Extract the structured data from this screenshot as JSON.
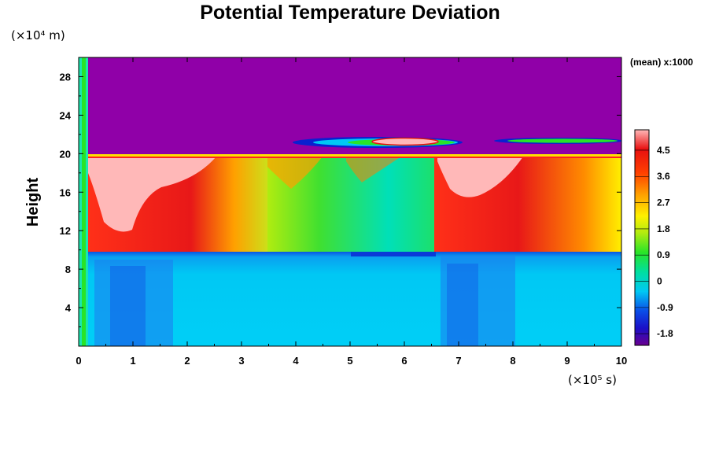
{
  "chart_data": {
    "type": "heatmap",
    "title": "Potential Temperature Deviation",
    "ylabel": "Height",
    "y_unit": "(×10⁴ m)",
    "x_unit": "(×10⁵ s)",
    "colorbar_note": "(mean) x:1000",
    "xlim": [
      0,
      10
    ],
    "ylim": [
      0,
      30
    ],
    "x_ticks": [
      "0",
      "1",
      "2",
      "3",
      "4",
      "5",
      "6",
      "7",
      "8",
      "9",
      "10"
    ],
    "y_ticks": [
      "4",
      "8",
      "12",
      "16",
      "20",
      "24",
      "28"
    ],
    "colorbar_ticks": [
      "4.5",
      "3.6",
      "2.7",
      "1.8",
      "0.9",
      "0",
      "-0.9",
      "-1.8"
    ],
    "colorbar_range": [
      -2.2,
      5.2
    ],
    "colorscale": [
      "#6a0090",
      "#1a10c8",
      "#0a4ee8",
      "#00c8f4",
      "#00dfa0",
      "#28e428",
      "#b0ec10",
      "#fff000",
      "#ffa000",
      "#ff4000",
      "#e81010",
      "#ffb8b8"
    ],
    "regions": [
      {
        "name": "stratosphere-top",
        "x": [
          0.2,
          10
        ],
        "y": [
          20,
          30
        ],
        "value": -2.0
      },
      {
        "name": "surface-layer",
        "x": [
          0.2,
          10
        ],
        "y": [
          0,
          10
        ],
        "value": 0.0
      },
      {
        "name": "inversion-band",
        "x": [
          0.2,
          10
        ],
        "y": [
          19.6,
          20.1
        ],
        "value": 2.0
      },
      {
        "name": "warm-core-1",
        "x": [
          0.2,
          3.5
        ],
        "y": [
          10,
          19.6
        ],
        "value": 4.5
      },
      {
        "name": "mid-column",
        "x": [
          3.5,
          6.5
        ],
        "y": [
          10,
          19.6
        ],
        "value": 1.5
      },
      {
        "name": "warm-core-2",
        "x": [
          6.5,
          10
        ],
        "y": [
          10,
          19.6
        ],
        "value": 4.5
      },
      {
        "name": "upper-warm-feature",
        "x": [
          5.0,
          6.6
        ],
        "y": [
          20.5,
          22.3
        ],
        "value": 5.0
      }
    ]
  }
}
